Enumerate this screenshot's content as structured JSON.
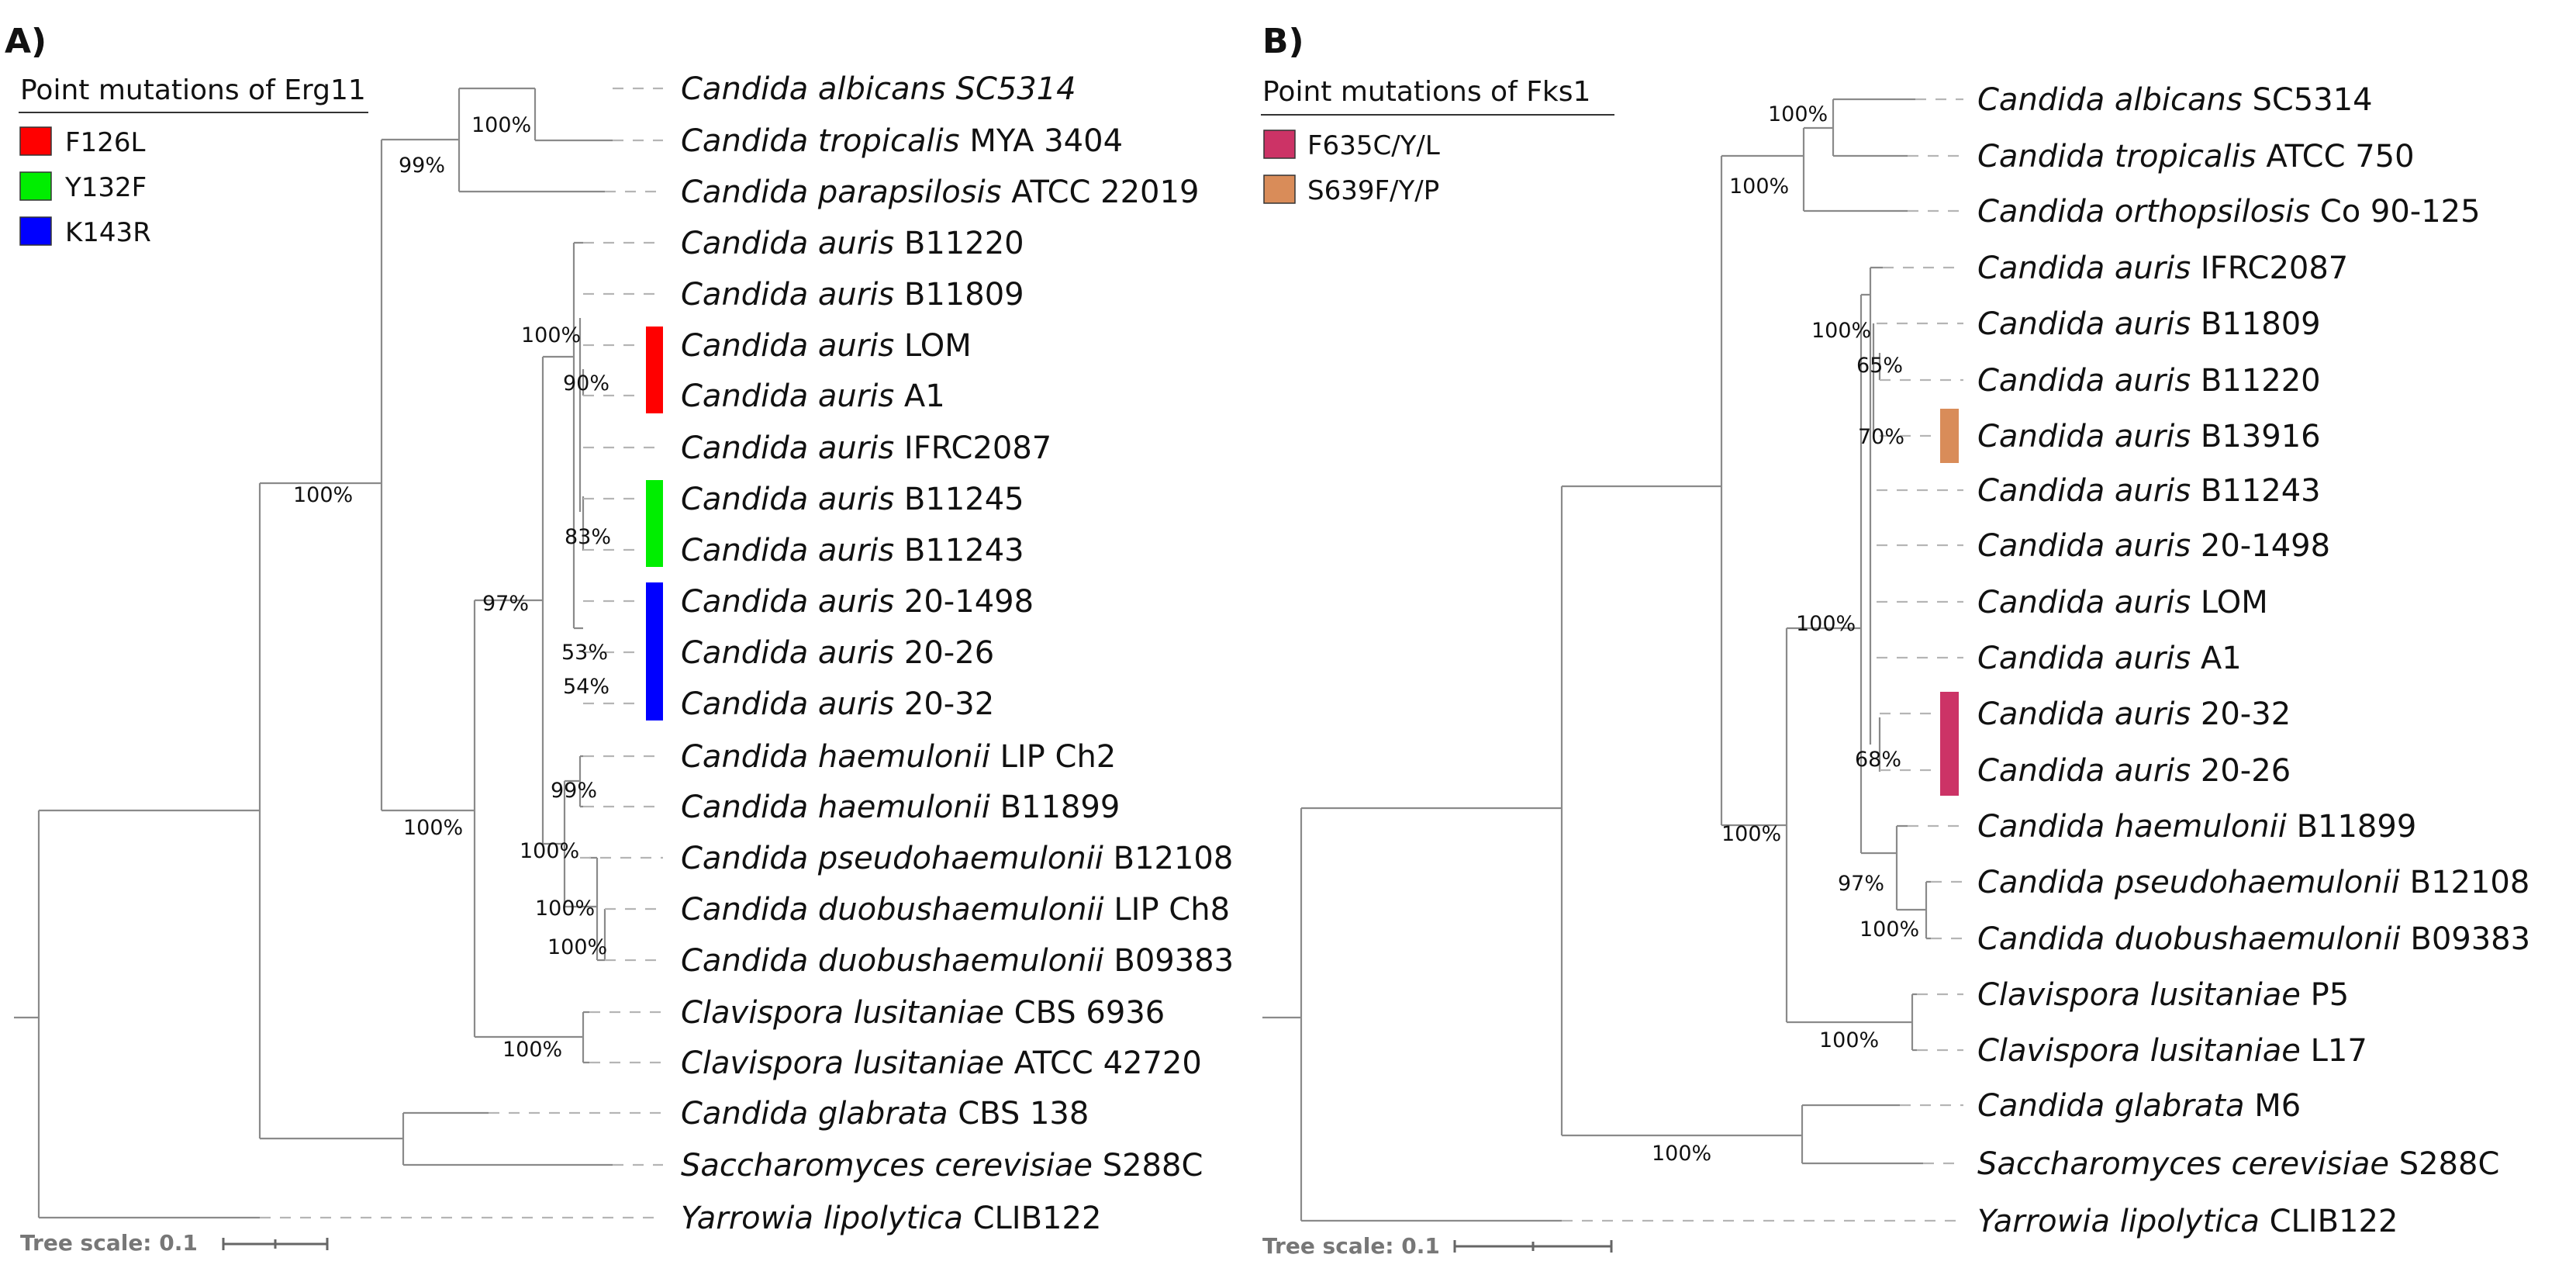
{
  "panels": [
    {
      "id": "A",
      "label": "A)",
      "legend_title": "Point mutations of Erg11",
      "legend": [
        {
          "key": "F126L",
          "label": "F126L",
          "color": "#ff0000"
        },
        {
          "key": "Y132F",
          "label": "Y132F",
          "color": "#00ee00"
        },
        {
          "key": "K143R",
          "label": "K143R",
          "color": "#0000ff"
        }
      ],
      "scale_label": "Tree scale: 0.1",
      "taxa": [
        {
          "genus": "Candida albicans SC5314",
          "strain": ""
        },
        {
          "genus": "Candida tropicalis",
          "strain": "MYA 3404"
        },
        {
          "genus": "Candida parapsilosis",
          "strain": "ATCC 22019"
        },
        {
          "genus": "Candida auris",
          "strain": "B11220"
        },
        {
          "genus": "Candida auris",
          "strain": "B11809"
        },
        {
          "genus": "Candida auris",
          "strain": "LOM",
          "mutation": "F126L"
        },
        {
          "genus": "Candida auris",
          "strain": "A1",
          "mutation": "F126L"
        },
        {
          "genus": "Candida auris",
          "strain": "IFRC2087"
        },
        {
          "genus": "Candida auris",
          "strain": "B11245",
          "mutation": "Y132F"
        },
        {
          "genus": "Candida auris",
          "strain": "B11243",
          "mutation": "Y132F"
        },
        {
          "genus": "Candida auris",
          "strain": "20-1498",
          "mutation": "K143R"
        },
        {
          "genus": "Candida auris",
          "strain": "20-26",
          "mutation": "K143R"
        },
        {
          "genus": "Candida auris",
          "strain": "20-32",
          "mutation": "K143R"
        },
        {
          "genus": "Candida haemulonii",
          "strain": "LIP Ch2"
        },
        {
          "genus": "Candida haemulonii",
          "strain": "B11899"
        },
        {
          "genus": "Candida pseudohaemulonii",
          "strain": "B12108"
        },
        {
          "genus": "Candida duobushaemulonii",
          "strain": "LIP Ch8"
        },
        {
          "genus": "Candida duobushaemulonii",
          "strain": "B09383"
        },
        {
          "genus": "Clavispora lusitaniae",
          "strain": "CBS 6936"
        },
        {
          "genus": "Clavispora lusitaniae",
          "strain": "ATCC 42720"
        },
        {
          "genus": "Candida glabrata",
          "strain": "CBS 138"
        },
        {
          "genus": "Saccharomyces cerevisiae",
          "strain": "S288C"
        },
        {
          "genus": "Yarrowia lipolytica",
          "strain": "CLIB122"
        }
      ],
      "supports": [
        "100%",
        "99%",
        "100%",
        "90%",
        "83%",
        "53%",
        "54%",
        "100%",
        "97%",
        "99%",
        "100%",
        "100%",
        "100%",
        "100%",
        "100%"
      ]
    },
    {
      "id": "B",
      "label": "B)",
      "legend_title": "Point mutations of Fks1",
      "legend": [
        {
          "key": "F635",
          "label": "F635C/Y/L",
          "color": "#cc3366"
        },
        {
          "key": "S639",
          "label": "S639F/Y/P",
          "color": "#d98c59"
        }
      ],
      "scale_label": "Tree scale: 0.1",
      "taxa": [
        {
          "genus": "Candida albicans",
          "strain": "SC5314"
        },
        {
          "genus": "Candida tropicalis",
          "strain": "ATCC 750"
        },
        {
          "genus": "Candida orthopsilosis",
          "strain": "Co 90-125"
        },
        {
          "genus": "Candida auris",
          "strain": "IFRC2087"
        },
        {
          "genus": "Candida auris",
          "strain": "B11809"
        },
        {
          "genus": "Candida auris",
          "strain": "B11220"
        },
        {
          "genus": "Candida auris",
          "strain": "B13916",
          "mutation": "S639"
        },
        {
          "genus": "Candida auris",
          "strain": "B11243"
        },
        {
          "genus": "Candida auris",
          "strain": "20-1498"
        },
        {
          "genus": "Candida auris",
          "strain": "LOM"
        },
        {
          "genus": "Candida auris",
          "strain": "A1"
        },
        {
          "genus": "Candida auris",
          "strain": "20-32",
          "mutation": "F635"
        },
        {
          "genus": "Candida auris",
          "strain": "20-26",
          "mutation": "F635"
        },
        {
          "genus": "Candida haemulonii",
          "strain": "B11899"
        },
        {
          "genus": "Candida pseudohaemulonii",
          "strain": "B12108"
        },
        {
          "genus": "Candida duobushaemulonii",
          "strain": "B09383"
        },
        {
          "genus": "Clavispora lusitaniae",
          "strain": "P5"
        },
        {
          "genus": "Clavispora lusitaniae",
          "strain": "L17"
        },
        {
          "genus": "Candida glabrata",
          "strain": "M6"
        },
        {
          "genus": "Saccharomyces cerevisiae",
          "strain": "S288C"
        },
        {
          "genus": "Yarrowia lipolytica",
          "strain": "CLIB122"
        }
      ],
      "supports": [
        "100%",
        "100%",
        "100%",
        "65%",
        "70%",
        "68%",
        "100%",
        "100%",
        "97%",
        "100%",
        "100%",
        "100%"
      ]
    }
  ]
}
